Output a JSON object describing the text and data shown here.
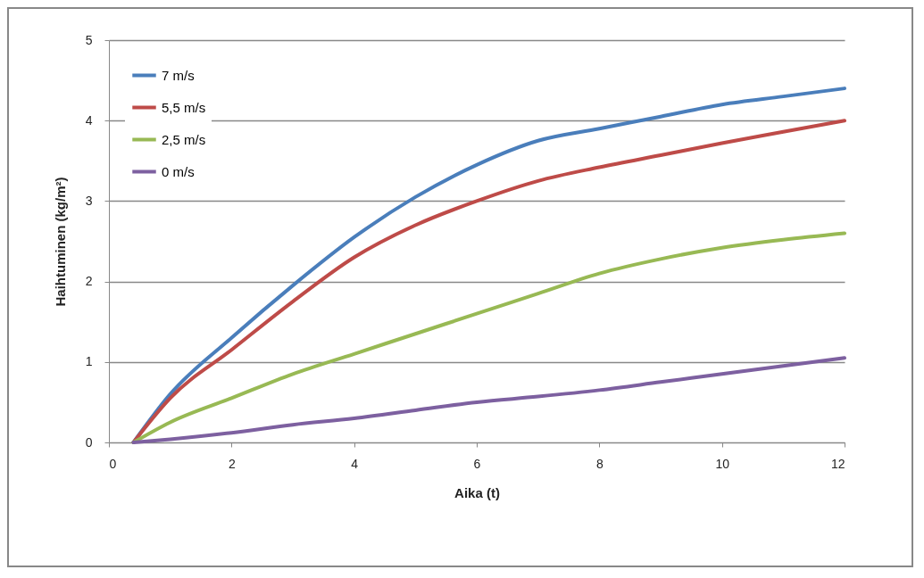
{
  "chart_data": {
    "type": "line",
    "xlabel": "Aika (t)",
    "ylabel": "Haihtuminen (kg/m²)",
    "x": [
      0.4,
      1,
      2,
      3,
      4,
      5,
      6,
      7,
      8,
      9,
      10,
      11,
      12
    ],
    "series": [
      {
        "name": "7 m/s",
        "color": "#4a7ebb",
        "values": [
          0,
          0.6,
          1.3,
          1.95,
          2.55,
          3.05,
          3.45,
          3.75,
          3.9,
          4.05,
          4.2,
          4.3,
          4.4
        ]
      },
      {
        "name": "5,5 m/s",
        "color": "#be4b48",
        "values": [
          0,
          0.55,
          1.15,
          1.75,
          2.3,
          2.7,
          3.0,
          3.25,
          3.42,
          3.57,
          3.72,
          3.86,
          4.0
        ]
      },
      {
        "name": "2,5 m/s",
        "color": "#98b954",
        "values": [
          0,
          0.25,
          0.55,
          0.85,
          1.1,
          1.35,
          1.6,
          1.85,
          2.1,
          2.28,
          2.42,
          2.52,
          2.6
        ]
      },
      {
        "name": "0 m/s",
        "color": "#7d60a0",
        "values": [
          0,
          0.04,
          0.12,
          0.22,
          0.3,
          0.4,
          0.5,
          0.57,
          0.65,
          0.75,
          0.85,
          0.95,
          1.05
        ]
      }
    ],
    "xlim": [
      0,
      12
    ],
    "xticks": [
      0,
      2,
      4,
      6,
      8,
      10,
      12
    ],
    "ylim": [
      0,
      5
    ],
    "yticks": [
      0,
      1,
      2,
      3,
      4,
      5
    ],
    "grid": "y",
    "legend": "top left",
    "marker": "none",
    "line_style": "solid"
  }
}
